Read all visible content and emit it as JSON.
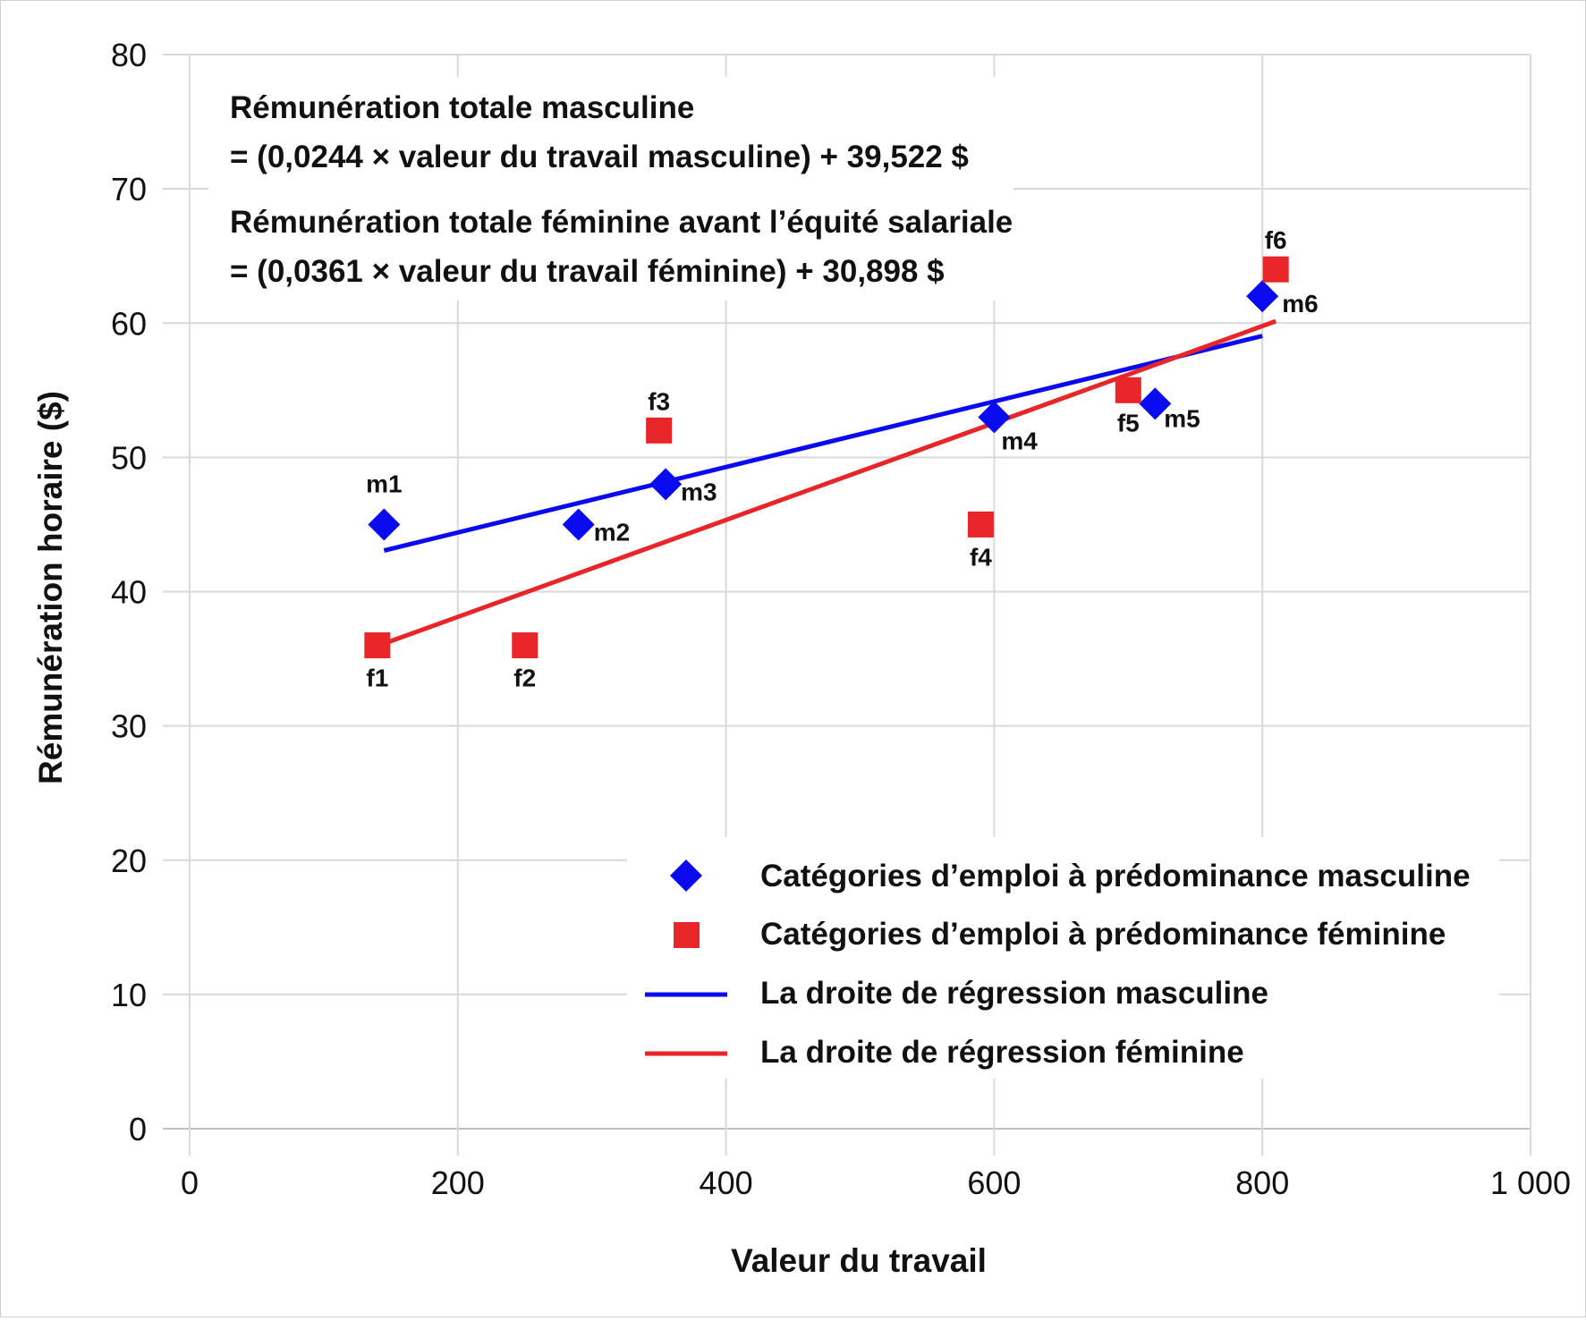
{
  "chart_data": {
    "type": "scatter",
    "xlabel": "Valeur du travail",
    "ylabel": "Rémunération horaire ($)",
    "xlim": [
      0,
      1000
    ],
    "ylim": [
      0,
      80
    ],
    "x_ticks": [
      {
        "value": 0,
        "label": "0"
      },
      {
        "value": 200,
        "label": "200"
      },
      {
        "value": 400,
        "label": "400"
      },
      {
        "value": 600,
        "label": "600"
      },
      {
        "value": 800,
        "label": "800"
      },
      {
        "value": 1000,
        "label": "1 000"
      }
    ],
    "y_ticks": [
      {
        "value": 0,
        "label": "0"
      },
      {
        "value": 10,
        "label": "10"
      },
      {
        "value": 20,
        "label": "20"
      },
      {
        "value": 30,
        "label": "30"
      },
      {
        "value": 40,
        "label": "40"
      },
      {
        "value": 50,
        "label": "50"
      },
      {
        "value": 60,
        "label": "60"
      },
      {
        "value": 70,
        "label": "70"
      },
      {
        "value": 80,
        "label": "80"
      }
    ],
    "grid": true,
    "legend_position": "bottom-right",
    "annotations": [
      "Rémunération totale masculine",
      "= (0,0244 × valeur du travail masculine) + 39,522 $",
      "Rémunération totale féminine avant l’équité salariale",
      "= (0,0361 × valeur du travail féminine) + 30,898 $"
    ],
    "series": [
      {
        "name": "Catégories d’emploi à prédominance masculine",
        "marker": "diamond",
        "color": "#0a0af0",
        "points": [
          {
            "label": "m1",
            "x": 145,
            "y": 45
          },
          {
            "label": "m2",
            "x": 290,
            "y": 45
          },
          {
            "label": "m3",
            "x": 355,
            "y": 48
          },
          {
            "label": "m4",
            "x": 600,
            "y": 53
          },
          {
            "label": "m5",
            "x": 720,
            "y": 54
          },
          {
            "label": "m6",
            "x": 800,
            "y": 62
          }
        ]
      },
      {
        "name": "Catégories d’emploi à prédominance féminine",
        "marker": "square",
        "color": "#e8262a",
        "points": [
          {
            "label": "f1",
            "x": 140,
            "y": 36
          },
          {
            "label": "f2",
            "x": 250,
            "y": 36
          },
          {
            "label": "f3",
            "x": 350,
            "y": 52
          },
          {
            "label": "f4",
            "x": 590,
            "y": 45
          },
          {
            "label": "f5",
            "x": 700,
            "y": 55
          },
          {
            "label": "f6",
            "x": 810,
            "y": 64
          }
        ]
      },
      {
        "name": "La droite de régression masculine",
        "marker": "line",
        "color": "#0a0af0",
        "x_range": [
          145,
          800
        ],
        "slope": 0.0244,
        "intercept": 39.522
      },
      {
        "name": "La droite de régression féminine",
        "marker": "line",
        "color": "#e8262a",
        "x_range": [
          140,
          810
        ],
        "slope": 0.0361,
        "intercept": 30.898
      }
    ]
  }
}
